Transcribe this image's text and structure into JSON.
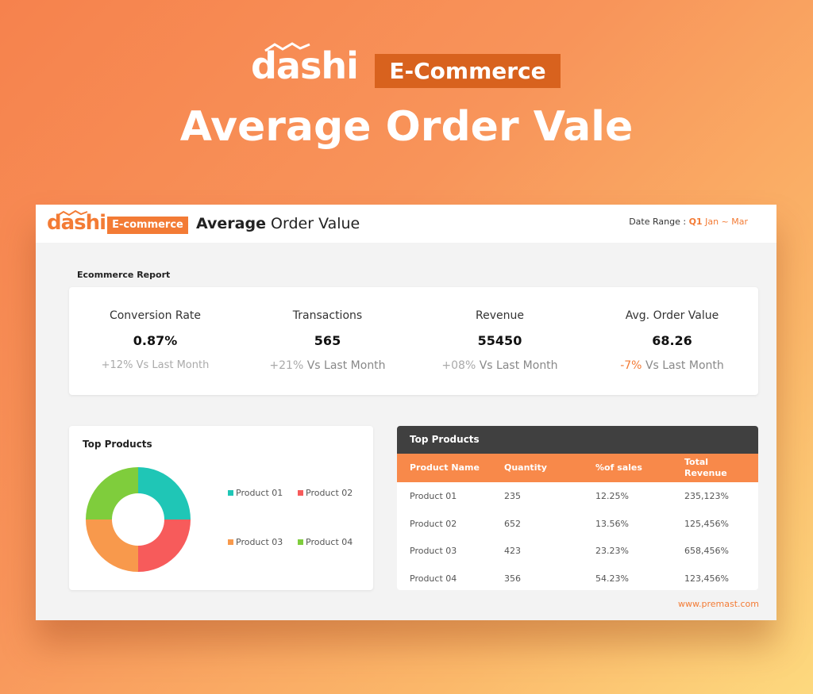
{
  "header": {
    "logo": "dashi",
    "badge": "E-Commerce",
    "title": "Average Order Vale"
  },
  "dashboard": {
    "logo": "dashi",
    "badge": "E-commerce",
    "title_bold": "Average",
    "title_rest": "Order Value",
    "date_range_label": "Date Range :",
    "date_range_quarter": "Q1",
    "date_range_months": "Jan ~ Mar",
    "report_title": "Ecommerce Report",
    "kpis": [
      {
        "label": "Conversion Rate",
        "value": "0.87%",
        "change": "+12%",
        "comparison": "Vs Last Month"
      },
      {
        "label": "Transactions",
        "value": "565",
        "change": "+21%",
        "comparison": "Vs Last Month"
      },
      {
        "label": "Revenue",
        "value": "55450",
        "change": "+08%",
        "comparison": "Vs Last Month"
      },
      {
        "label": "Avg. Order Value",
        "value": "68.26",
        "change": "-7%",
        "comparison": "Vs Last Month"
      }
    ],
    "top_products_chart": {
      "type": "pie",
      "title": "Top Products",
      "categories": [
        "Product 01",
        "Product 02",
        "Product 03",
        "Product 04"
      ],
      "values": [
        25,
        25,
        25,
        25
      ],
      "colors": [
        "#1fc6b6",
        "#f75b5b",
        "#f8994c",
        "#7fcd3c"
      ]
    },
    "table": {
      "title": "Top Products",
      "columns": [
        "Product Name",
        "Quantity",
        "%of sales",
        "Total Revenue"
      ],
      "rows": [
        [
          "Product 01",
          "235",
          "12.25%",
          "235,123%"
        ],
        [
          "Product 02",
          "652",
          "13.56%",
          "125,456%"
        ],
        [
          "Product 03",
          "423",
          "23.23%",
          "658,456%"
        ],
        [
          "Product 04",
          "356",
          "54.23%",
          "123,456%"
        ]
      ]
    },
    "footer": "www.premast.com"
  }
}
